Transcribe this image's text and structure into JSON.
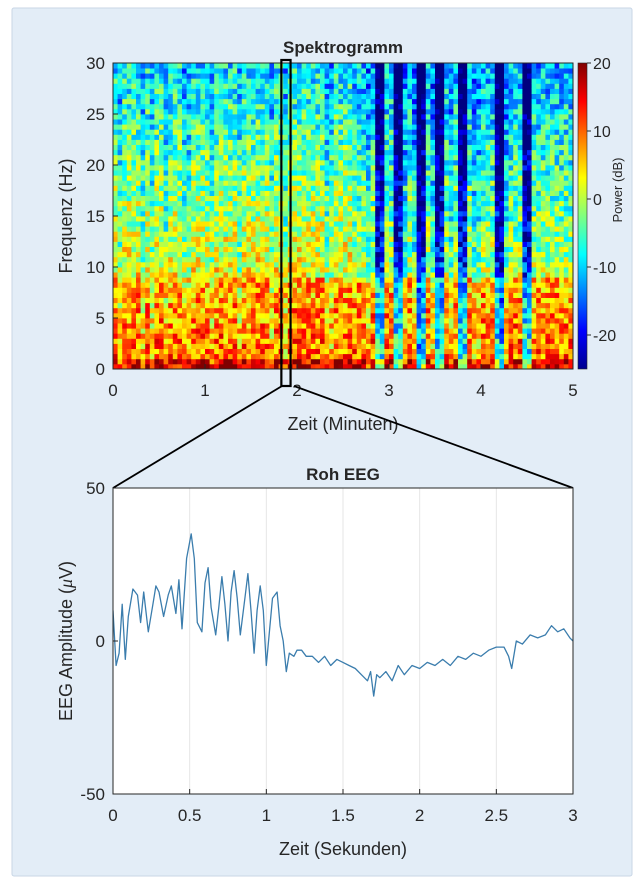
{
  "figure": {
    "background": "#e3edf7",
    "border_color": "#c8d6e6"
  },
  "chart_data": [
    {
      "type": "heatmap",
      "title": "Spektrogramm",
      "xlabel": "Zeit (Minuten)",
      "ylabel": "Frequenz (Hz)",
      "xlim": [
        0,
        5
      ],
      "ylim": [
        0,
        30
      ],
      "xticks": [
        "0",
        "1",
        "2",
        "3",
        "4",
        "5"
      ],
      "yticks": [
        "0",
        "5",
        "10",
        "15",
        "20",
        "25",
        "30"
      ],
      "colorbar": {
        "label": "Power (dB)",
        "range": [
          -25,
          20
        ],
        "ticks": [
          "-20",
          "-10",
          "0",
          "10",
          "20"
        ],
        "colormap": "jet"
      },
      "zoom_window_minutes": [
        1.83,
        1.93
      ],
      "description_bands": {
        "low_freq_hz": [
          0,
          9
        ],
        "low_freq_power_db": 12,
        "high_freq_power_db": -10,
        "dark_bursts_minutes": [
          2.9,
          3.1,
          3.35,
          3.55,
          3.8,
          4.2,
          4.5
        ]
      }
    },
    {
      "type": "line",
      "title": "Roh EEG",
      "xlabel": "Zeit (Sekunden)",
      "ylabel": "EEG Amplitude (μV)",
      "ylabel_plain": "EEG Amplitude (",
      "ylabel_mu": "μ",
      "ylabel_tail": "V)",
      "xlim": [
        0,
        3
      ],
      "ylim": [
        -50,
        50
      ],
      "xticks": [
        "0",
        "0.5",
        "1",
        "1.5",
        "2",
        "2.5",
        "3"
      ],
      "yticks": [
        "-50",
        "0",
        "50"
      ],
      "grid": "vertical",
      "line_color": "#3b7dad",
      "series": [
        {
          "x": [
            0.0,
            0.02,
            0.04,
            0.06,
            0.08,
            0.1,
            0.13,
            0.16,
            0.18,
            0.2,
            0.23,
            0.26,
            0.28,
            0.3,
            0.33,
            0.36,
            0.38,
            0.41,
            0.43,
            0.45,
            0.48,
            0.51,
            0.53,
            0.55,
            0.58,
            0.6,
            0.62,
            0.64,
            0.67,
            0.69,
            0.71,
            0.73,
            0.75,
            0.77,
            0.79,
            0.81,
            0.83,
            0.86,
            0.88,
            0.9,
            0.92,
            0.94,
            0.96,
            0.98,
            1.0,
            1.02,
            1.04,
            1.07,
            1.09,
            1.11,
            1.13,
            1.15,
            1.18,
            1.2,
            1.23,
            1.26,
            1.3,
            1.34,
            1.38,
            1.42,
            1.46,
            1.5,
            1.54,
            1.58,
            1.62,
            1.66,
            1.68,
            1.7,
            1.72,
            1.74,
            1.78,
            1.82,
            1.86,
            1.9,
            1.95,
            2.0,
            2.05,
            2.1,
            2.15,
            2.2,
            2.25,
            2.3,
            2.35,
            2.4,
            2.45,
            2.5,
            2.55,
            2.58,
            2.6,
            2.63,
            2.67,
            2.72,
            2.77,
            2.82,
            2.86,
            2.9,
            2.94,
            2.98,
            3.0
          ],
          "y": [
            10,
            -8,
            -4,
            12,
            -6,
            8,
            17,
            15,
            6,
            16,
            3,
            12,
            18,
            16,
            8,
            15,
            18,
            9,
            20,
            4,
            27,
            35,
            27,
            6,
            3,
            19,
            24,
            11,
            2,
            11,
            21,
            12,
            0,
            16,
            23,
            14,
            2,
            14,
            22,
            10,
            -4,
            10,
            18,
            10,
            -8,
            3,
            14,
            16,
            5,
            0,
            -10,
            -4,
            -5,
            -3,
            -3,
            -5,
            -5,
            -7,
            -5,
            -8,
            -6,
            -7,
            -8,
            -9,
            -11,
            -13,
            -10,
            -18,
            -11,
            -12,
            -10,
            -13,
            -8,
            -11,
            -8,
            -9,
            -7,
            -8,
            -6,
            -8,
            -5,
            -6,
            -4,
            -5,
            -3,
            -2,
            -2,
            -5,
            -9,
            0,
            -1,
            2,
            1,
            2,
            5,
            3,
            4,
            1,
            0
          ]
        }
      ]
    }
  ]
}
